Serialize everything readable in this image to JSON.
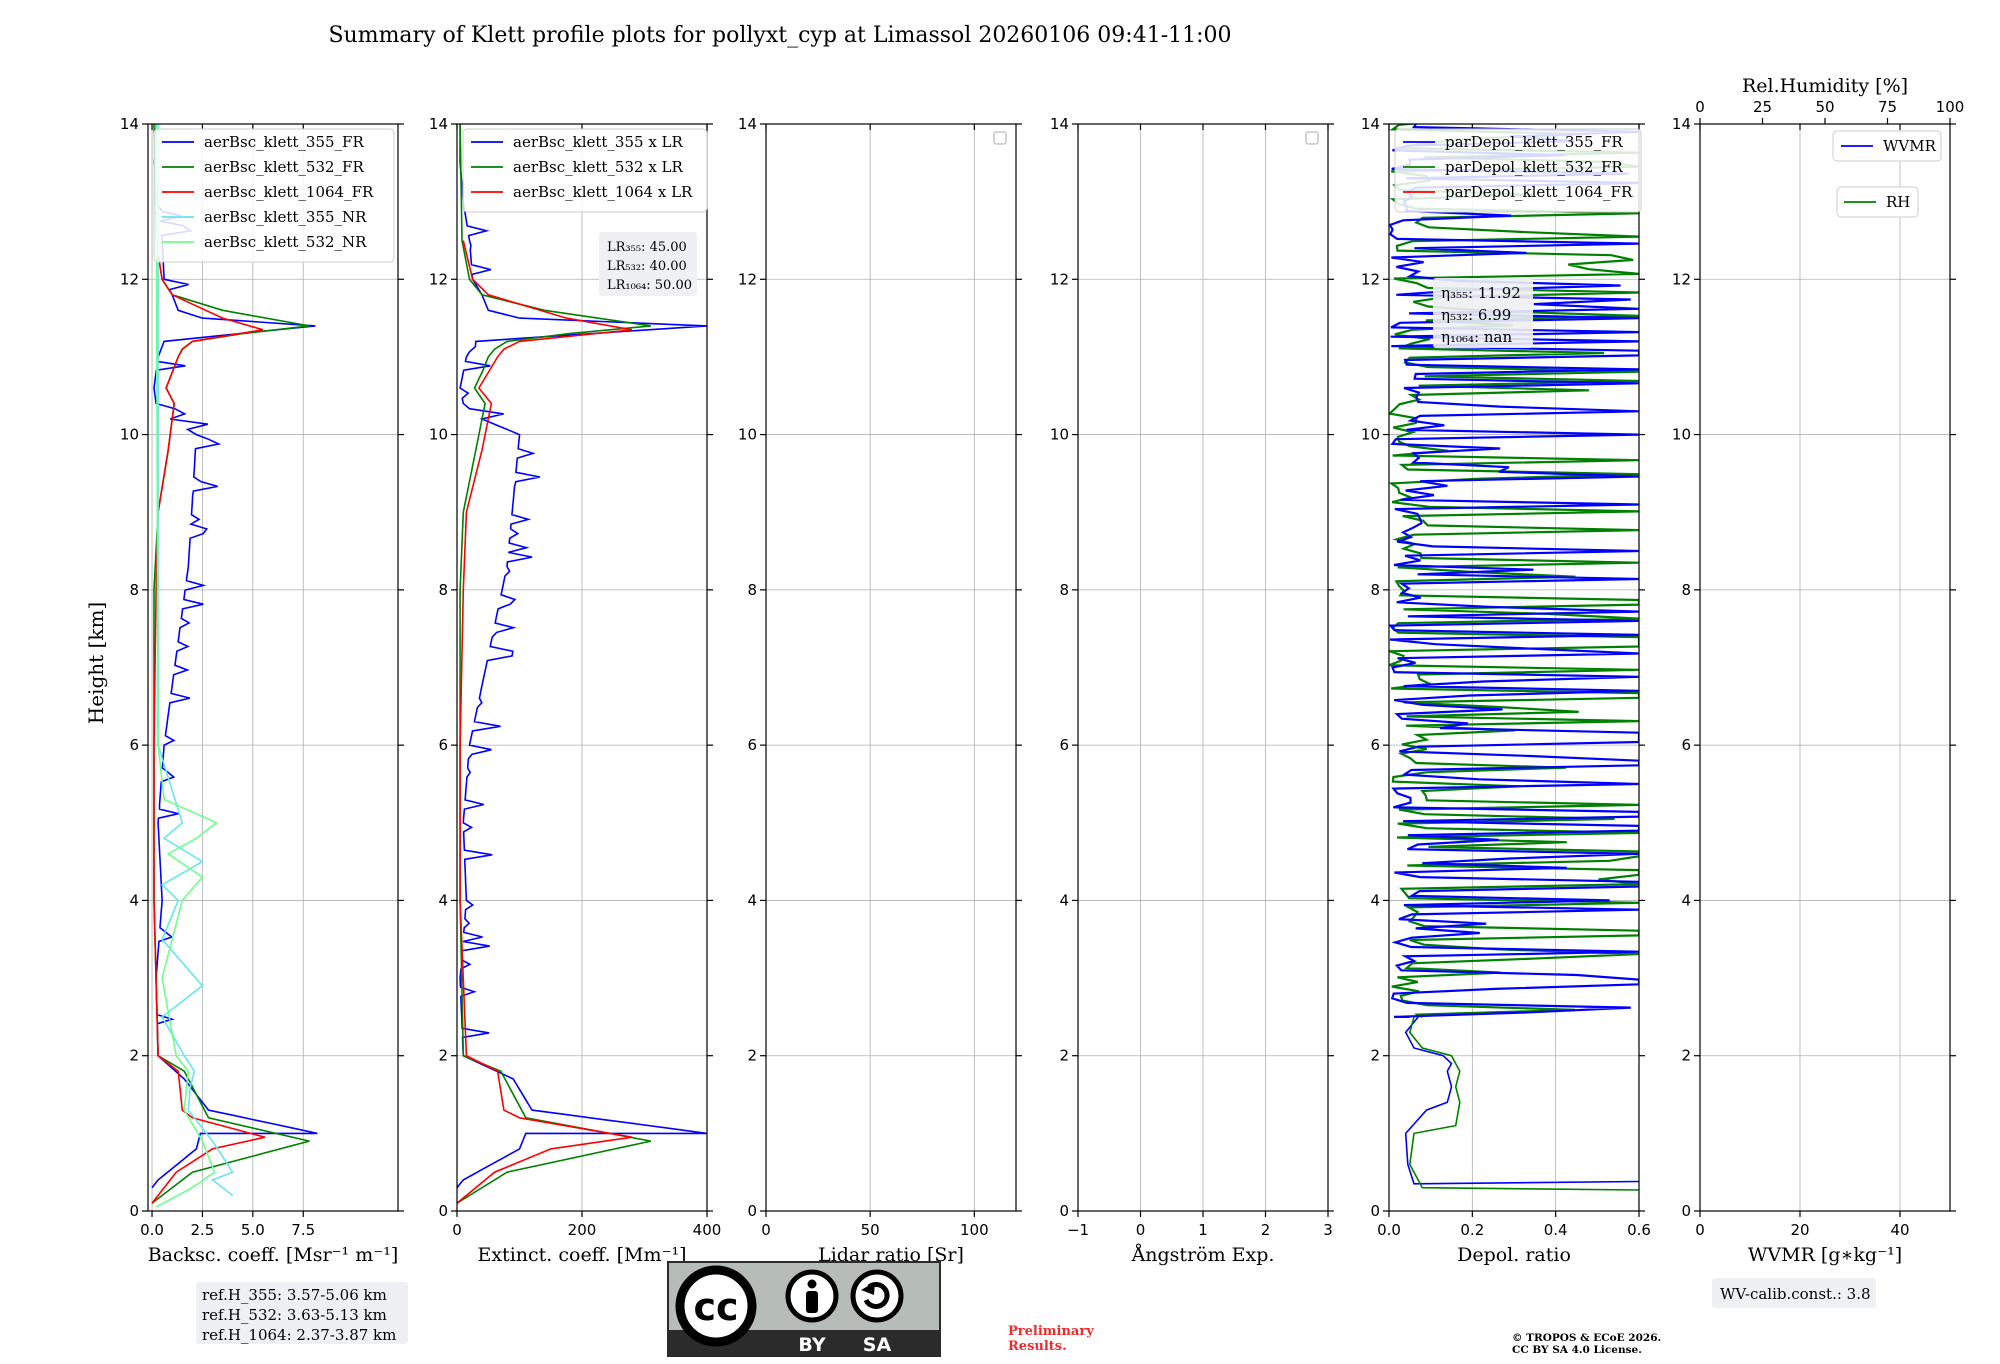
{
  "title": "Summary of Klett profile plots for pollyxt_cyp at Limassol 20260106 09:41-11:00",
  "y_label": "Height [km]",
  "colors": {
    "c355": "#0000ff",
    "c532": "#008000",
    "c1064": "#ff0000",
    "c355nr": "#66e6ee",
    "c532nr": "#6cff8a",
    "cc_bg": "#b6bcb8",
    "cc_dark": "#2b2b2b",
    "prelim": "#ee2b2b"
  },
  "chart_data": [
    {
      "id": "backscatter",
      "type": "line",
      "xlabel": "Backsc. coeff. [Msr⁻¹ m⁻¹]",
      "xlim": [
        -0.2,
        12.2
      ],
      "ylim": [
        0,
        14
      ],
      "xticks": [
        0,
        2.5,
        5,
        7.5
      ],
      "xtick_labels": [
        "0.0",
        "2.5",
        "5.0",
        "7.5"
      ],
      "yticks": [
        0,
        2,
        4,
        6,
        8,
        10,
        12,
        14
      ],
      "legend": [
        "aerBsc_klett_355_FR",
        "aerBsc_klett_532_FR",
        "aerBsc_klett_1064_FR",
        "aerBsc_klett_355_NR",
        "aerBsc_klett_532_NR"
      ],
      "series": [
        {
          "name": "aerBsc_klett_355_FR",
          "color_key": "c355",
          "noisy": true,
          "x": [
            0,
            0.3,
            2.2,
            2.4,
            8.2,
            2.8,
            1.6,
            0.3,
            0.2,
            0.5,
            0.3,
            0.6,
            1.8,
            2.2,
            0.9,
            0.2,
            0.1,
            0.3,
            0.6,
            8.1,
            2.5,
            1.3,
            1.0,
            0.6,
            0.5,
            0.3,
            0.1,
            0.2
          ],
          "y": [
            0.3,
            0.4,
            0.8,
            1.0,
            1.0,
            1.3,
            1.7,
            2.0,
            3.0,
            4.0,
            5.0,
            6.0,
            8.3,
            10.0,
            10.2,
            10.4,
            10.6,
            11.0,
            11.2,
            11.4,
            11.5,
            11.6,
            11.8,
            12.0,
            12.5,
            13.0,
            13.5,
            14.0
          ]
        },
        {
          "name": "aerBsc_klett_532_FR",
          "color_key": "c532",
          "x": [
            0,
            2.0,
            7.8,
            2.8,
            1.6,
            0.3,
            0.1,
            0.1,
            0.1,
            0.3,
            0.8,
            0.9,
            1.1,
            0.7,
            1.0,
            1.3,
            1.5,
            2.0,
            4.5,
            7.8,
            3.5,
            1.0,
            0.5,
            0.2,
            0.1
          ],
          "y": [
            0.1,
            0.5,
            0.9,
            1.2,
            1.8,
            2.0,
            4.0,
            6.0,
            8.0,
            9.0,
            9.8,
            10.0,
            10.4,
            10.6,
            10.8,
            11.0,
            11.1,
            11.2,
            11.3,
            11.4,
            11.6,
            11.8,
            12.0,
            12.5,
            14.0
          ]
        },
        {
          "name": "aerBsc_klett_1064_FR",
          "color_key": "c1064",
          "x": [
            0,
            1.2,
            3.0,
            5.6,
            2.0,
            1.5,
            1.3,
            0.3,
            0.1,
            0.1,
            0.2,
            0.3,
            0.8,
            0.9,
            1.1,
            0.7,
            1.0,
            1.3,
            1.5,
            2.0,
            5.5,
            3.5,
            1.0,
            0.5,
            0.2
          ],
          "y": [
            0.1,
            0.5,
            0.8,
            0.95,
            1.2,
            1.3,
            1.8,
            2.0,
            4.0,
            6.0,
            8.0,
            9.0,
            9.8,
            10.0,
            10.4,
            10.6,
            10.8,
            11.0,
            11.1,
            11.2,
            11.35,
            11.5,
            11.8,
            12.0,
            12.5
          ]
        },
        {
          "name": "aerBsc_klett_355_NR",
          "color_key": "c355nr",
          "x": [
            4.0,
            3.0,
            4.0,
            3.0,
            1.8,
            1.9,
            2.1,
            1.6,
            0.5,
            2.5,
            0.5,
            1.3,
            0.5,
            2.5,
            0.6,
            1.5,
            0.3,
            0.3
          ],
          "y": [
            0.2,
            0.4,
            0.5,
            0.9,
            1.3,
            1.6,
            1.8,
            2.0,
            2.5,
            2.9,
            3.5,
            4.0,
            4.2,
            4.5,
            4.8,
            5.0,
            6.0,
            14.0
          ]
        },
        {
          "name": "aerBsc_klett_532_NR",
          "color_key": "c532nr",
          "x": [
            0.2,
            2.0,
            3.1,
            2.5,
            1.6,
            1.8,
            1.2,
            0.5,
            1.0,
            1.5,
            2.5,
            0.8,
            2.2,
            3.2,
            0.6,
            0.3,
            0.2
          ],
          "y": [
            0.05,
            0.3,
            0.5,
            0.9,
            1.3,
            1.8,
            2.0,
            3.0,
            3.5,
            4.0,
            4.3,
            4.6,
            4.8,
            5.0,
            5.3,
            6.0,
            14.0
          ]
        }
      ],
      "annotation": [
        "ref.H_355: 3.57-5.06 km",
        "ref.H_532: 3.63-5.13 km",
        "ref.H_1064: 2.37-3.87 km"
      ]
    },
    {
      "id": "extinction",
      "type": "line",
      "xlabel": "Extinct. coeff. [Mm⁻¹]",
      "xlim": [
        0,
        400
      ],
      "ylim": [
        0,
        14
      ],
      "xticks": [
        0,
        200,
        400
      ],
      "xtick_labels": [
        "0",
        "200",
        "400"
      ],
      "yticks": [
        0,
        2,
        4,
        6,
        8,
        10,
        12,
        14
      ],
      "legend": [
        "aerBsc_klett_355 x LR",
        "aerBsc_klett_532 x LR",
        "aerBsc_klett_1064 x LR"
      ],
      "series": [
        {
          "name": "aerBsc_klett_355 x LR",
          "color_key": "c355",
          "noisy": true,
          "x": [
            0,
            10,
            100,
            110,
            400,
            120,
            90,
            10,
            5,
            15,
            10,
            20,
            80,
            100,
            40,
            10,
            5,
            15,
            30,
            400,
            100,
            50,
            40,
            25,
            20,
            10,
            5,
            5
          ],
          "y": [
            0.3,
            0.4,
            0.8,
            1.0,
            1.0,
            1.3,
            1.7,
            2.0,
            3.0,
            4.0,
            5.0,
            6.0,
            8.3,
            10.0,
            10.2,
            10.4,
            10.6,
            11.0,
            11.2,
            11.4,
            11.5,
            11.6,
            11.8,
            12.0,
            12.5,
            13.0,
            13.5,
            14.0
          ]
        },
        {
          "name": "aerBsc_klett_532 x LR",
          "color_key": "c532",
          "x": [
            0,
            80,
            310,
            110,
            70,
            10,
            5,
            5,
            5,
            10,
            30,
            35,
            45,
            28,
            40,
            50,
            60,
            80,
            180,
            310,
            140,
            40,
            20,
            8,
            5
          ],
          "y": [
            0.1,
            0.5,
            0.9,
            1.2,
            1.8,
            2.0,
            4.0,
            6.0,
            8.0,
            9.0,
            9.8,
            10.0,
            10.4,
            10.6,
            10.8,
            11.0,
            11.1,
            11.2,
            11.3,
            11.4,
            11.6,
            11.8,
            12.0,
            12.5,
            14.0
          ]
        },
        {
          "name": "aerBsc_klett_1064 x LR",
          "color_key": "c1064",
          "x": [
            0,
            60,
            150,
            280,
            100,
            75,
            65,
            15,
            5,
            5,
            10,
            15,
            40,
            45,
            55,
            35,
            50,
            65,
            75,
            100,
            280,
            175,
            50,
            25,
            10
          ],
          "y": [
            0.1,
            0.5,
            0.8,
            0.95,
            1.2,
            1.3,
            1.8,
            2.0,
            4.0,
            6.0,
            8.0,
            9.0,
            9.8,
            10.0,
            10.4,
            10.6,
            10.8,
            11.0,
            11.1,
            11.2,
            11.35,
            11.5,
            11.8,
            12.0,
            12.5
          ]
        }
      ],
      "annotation": [
        "LR₃₅₅: 45.00",
        "LR₅₃₂: 40.00",
        "LR₁₀₆₄: 50.00"
      ]
    },
    {
      "id": "lidar_ratio",
      "type": "line",
      "xlabel": "Lidar ratio [Sr]",
      "xlim": [
        0,
        120
      ],
      "ylim": [
        0,
        14
      ],
      "xticks": [
        0,
        50,
        100
      ],
      "xtick_labels": [
        "0",
        "50",
        "100"
      ],
      "yticks": [
        0,
        2,
        4,
        6,
        8,
        10,
        12,
        14
      ],
      "legend": [],
      "series": []
    },
    {
      "id": "angstrom",
      "type": "line",
      "xlabel": "Ångström Exp.",
      "xlim": [
        -1,
        3
      ],
      "ylim": [
        0,
        14
      ],
      "xticks": [
        -1,
        0,
        1,
        2,
        3
      ],
      "xtick_labels": [
        "−1",
        "0",
        "1",
        "2",
        "3"
      ],
      "yticks": [
        0,
        2,
        4,
        6,
        8,
        10,
        12,
        14
      ],
      "legend": [],
      "series": []
    },
    {
      "id": "depol",
      "type": "line",
      "xlabel": "Depol. ratio",
      "xlim": [
        0,
        0.6
      ],
      "ylim": [
        0,
        14
      ],
      "xticks": [
        0,
        0.2,
        0.4,
        0.6
      ],
      "xtick_labels": [
        "0.0",
        "0.2",
        "0.4",
        "0.6"
      ],
      "yticks": [
        0,
        2,
        4,
        6,
        8,
        10,
        12,
        14
      ],
      "legend": [
        "parDepol_klett_355_FR",
        "parDepol_klett_532_FR",
        "parDepol_klett_1064_FR"
      ],
      "series": [
        {
          "name": "parDepol_klett_355_FR",
          "color_key": "c355",
          "x": [
            0.6,
            0.06,
            0.045,
            0.04,
            0.09,
            0.14,
            0.15,
            0.14,
            0.15,
            0.13,
            0.06,
            0.04,
            0.07
          ],
          "y": [
            0.38,
            0.35,
            0.6,
            1.0,
            1.3,
            1.4,
            1.6,
            1.8,
            1.9,
            2.0,
            2.1,
            2.3,
            2.5
          ]
        },
        {
          "name": "parDepol_klett_532_FR",
          "color_key": "c532",
          "x": [
            0.6,
            0.08,
            0.05,
            0.06,
            0.16,
            0.17,
            0.16,
            0.17,
            0.15,
            0.08,
            0.05,
            0.06
          ],
          "y": [
            0.27,
            0.3,
            0.6,
            1.0,
            1.1,
            1.4,
            1.6,
            1.8,
            2.0,
            2.1,
            2.3,
            2.5
          ]
        }
      ],
      "noise_start_km": 2.5,
      "annotation": [
        "η₃₅₅: 11.92",
        "η₅₃₂: 6.99",
        "η₁₀₆₄: nan"
      ]
    },
    {
      "id": "wvmr",
      "type": "line",
      "xlabel": "WVMR [g∗kg⁻¹]",
      "xlim": [
        0,
        50
      ],
      "ylim": [
        0,
        14
      ],
      "xticks": [
        0,
        20,
        40
      ],
      "xtick_labels": [
        "0",
        "20",
        "40"
      ],
      "yticks": [
        0,
        2,
        4,
        6,
        8,
        10,
        12,
        14
      ],
      "top_axis_label": "Rel.Humidity [%]",
      "top_ticks": [
        0,
        25,
        50,
        75,
        100
      ],
      "legend": [
        "WVMR",
        "RH"
      ],
      "series": [],
      "annotation": [
        "WV-calib.const.: 3.8"
      ]
    }
  ],
  "footer": {
    "cc_letters": "cc",
    "cc_by": "BY",
    "cc_sa": "SA",
    "preliminary": [
      "Preliminary",
      "Results."
    ],
    "copyright": [
      "© TROPOS & ECoE 2026.",
      "CC BY SA 4.0 License."
    ]
  }
}
